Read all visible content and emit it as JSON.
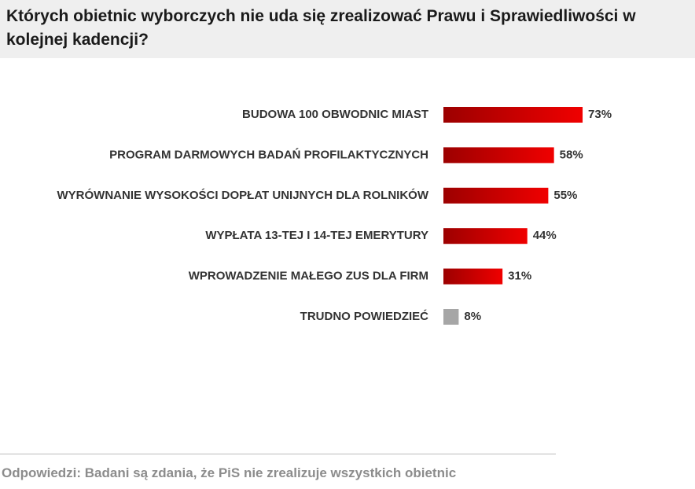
{
  "chart_data": {
    "type": "bar",
    "orientation": "horizontal",
    "title": "Których obietnic wyborczych nie uda się zrealizować Prawu i Sprawiedliwości w kolejnej kadencji?",
    "categories": [
      "BUDOWA 100 OBWODNIC MIAST",
      "PROGRAM DARMOWYCH BADAŃ PROFILAKTYCZNYCH",
      "WYRÓWNANIE WYSOKOŚCI DOPŁAT UNIJNYCH DLA ROLNIKÓW",
      "WYPŁATA 13-TEJ I 14-TEJ EMERYTURY",
      "WPROWADZENIE MAŁEGO ZUS DLA FIRM",
      "TRUDNO POWIEDZIEĆ"
    ],
    "values": [
      73,
      58,
      55,
      44,
      31,
      8
    ],
    "value_labels": [
      "73%",
      "58%",
      "55%",
      "44%",
      "31%",
      "8%"
    ],
    "colors": [
      "#f00000",
      "#f00000",
      "#f00000",
      "#f00000",
      "#f00000",
      "#a6a6a6"
    ],
    "footnote": "Odpowiedzi: Badani są zdania, że PiS nie zrealizuje wszystkich obietnic"
  }
}
